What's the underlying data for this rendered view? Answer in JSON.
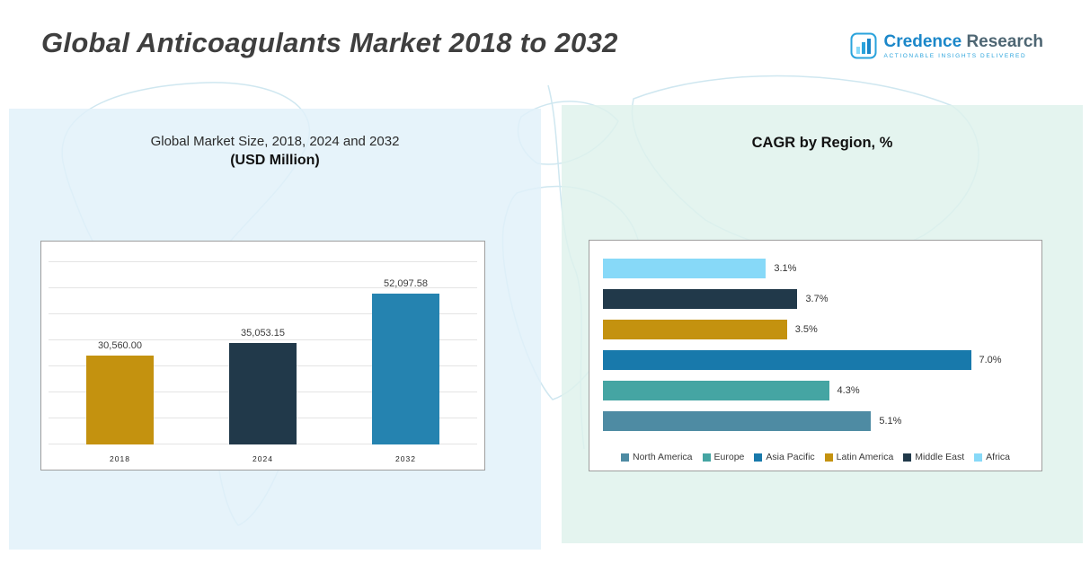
{
  "header": {
    "title": "Global Anticoagulants Market 2018 to 2032",
    "logo": {
      "brand_primary": "Credence",
      "brand_secondary": "Research",
      "tagline": "Actionable Insights Delivered"
    }
  },
  "left_panel": {
    "subtitle_line1": "Global Market Size, 2018, 2024 and 2032",
    "subtitle_line2": "(USD Million)"
  },
  "right_panel": {
    "title": "CAGR by Region, %"
  },
  "chart_data": [
    {
      "type": "bar",
      "orientation": "vertical",
      "title": "Global Market Size, 2018, 2024 and 2032 (USD Million)",
      "categories": [
        "2018",
        "2024",
        "2032"
      ],
      "values": [
        30560.0,
        35053.15,
        52097.58
      ],
      "value_labels": [
        "30,560.00",
        "35,053.15",
        "52,097.58"
      ],
      "colors": [
        "#c4920f",
        "#21394a",
        "#2583b0"
      ],
      "xlabel": "",
      "ylabel": "USD Million",
      "ylim": [
        0,
        60000
      ],
      "grid": true,
      "legend_position": "none"
    },
    {
      "type": "bar",
      "orientation": "horizontal",
      "title": "CAGR by Region, %",
      "categories": [
        "Africa",
        "Middle East",
        "Latin America",
        "Asia Pacific",
        "Europe",
        "North America"
      ],
      "values": [
        3.1,
        3.7,
        3.5,
        7.0,
        4.3,
        5.1
      ],
      "value_labels": [
        "3.1%",
        "3.7%",
        "3.5%",
        "7.0%",
        "4.3%",
        "5.1%"
      ],
      "colors": [
        "#87d9f8",
        "#21394a",
        "#c4920f",
        "#1879ab",
        "#45a5a3",
        "#4e8ba3"
      ],
      "xlabel": "CAGR %",
      "ylabel": "",
      "xlim": [
        0,
        8
      ],
      "grid": false,
      "legend": [
        "North America",
        "Europe",
        "Asia Pacific",
        "Latin America",
        "Middle East",
        "Africa"
      ],
      "legend_position": "bottom"
    }
  ]
}
